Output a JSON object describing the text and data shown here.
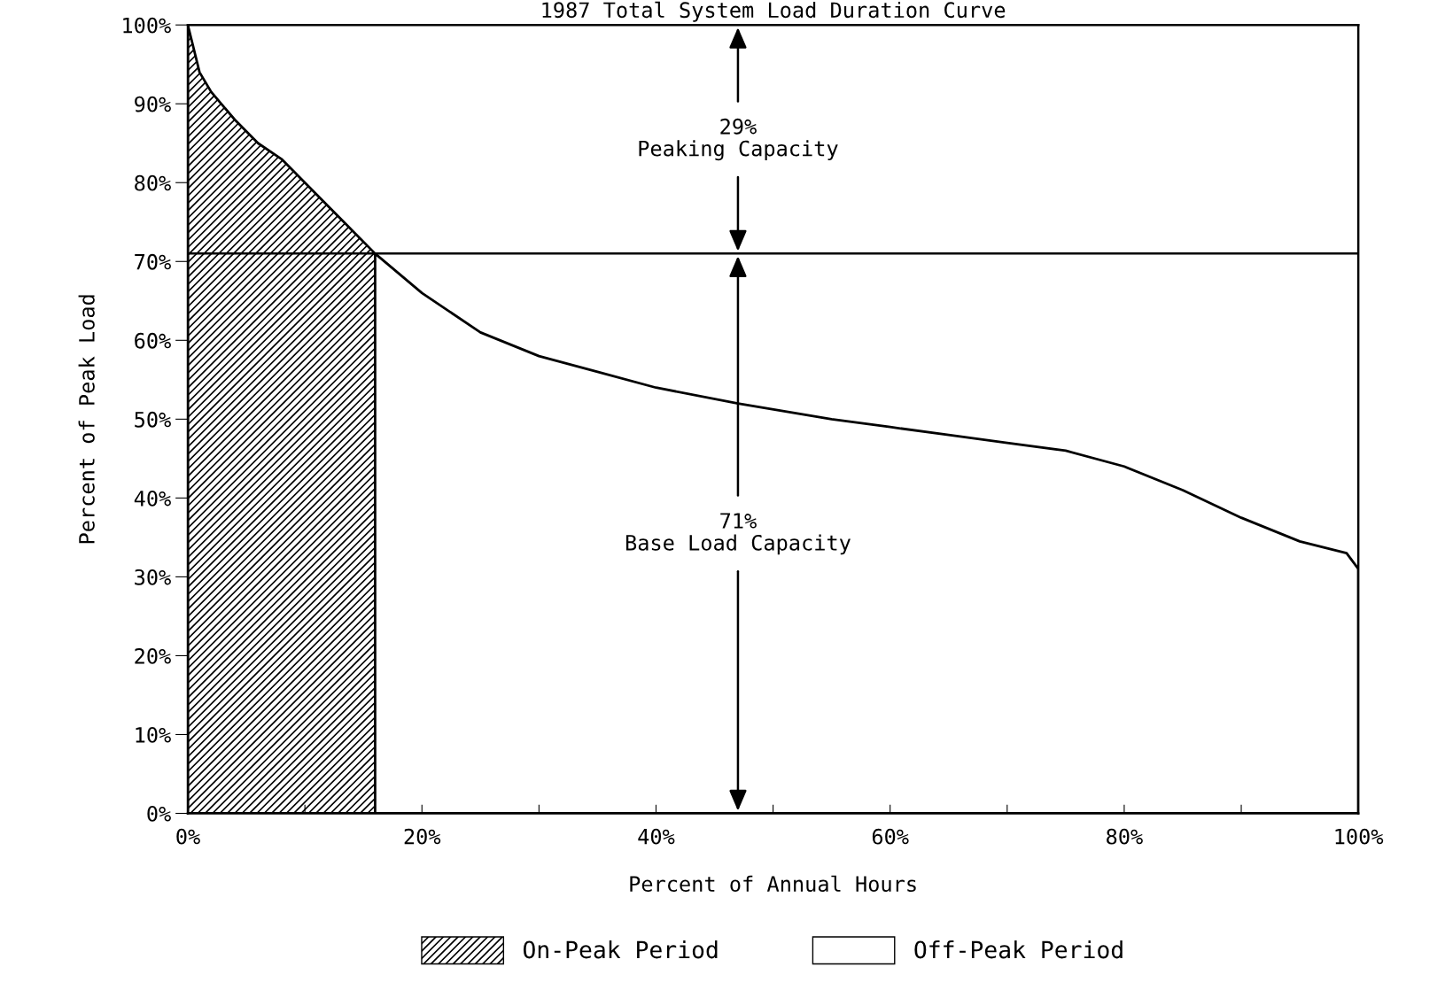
{
  "chart_data": {
    "type": "area",
    "title": "1987 Total System Load Duration Curve",
    "xlabel": "Percent of Annual Hours",
    "ylabel": "Percent of Peak Load",
    "xlim": [
      0,
      100
    ],
    "ylim": [
      0,
      100
    ],
    "xticks": [
      {
        "value": 0,
        "label": "0%"
      },
      {
        "value": 10,
        "label": null
      },
      {
        "value": 20,
        "label": "20%"
      },
      {
        "value": 30,
        "label": null
      },
      {
        "value": 40,
        "label": "40%"
      },
      {
        "value": 50,
        "label": null
      },
      {
        "value": 60,
        "label": "60%"
      },
      {
        "value": 70,
        "label": null
      },
      {
        "value": 80,
        "label": "80%"
      },
      {
        "value": 90,
        "label": null
      },
      {
        "value": 100,
        "label": "100%"
      }
    ],
    "yticks": [
      {
        "value": 0,
        "label": "0%"
      },
      {
        "value": 10,
        "label": "10%"
      },
      {
        "value": 20,
        "label": "20%"
      },
      {
        "value": 30,
        "label": "30%"
      },
      {
        "value": 40,
        "label": "40%"
      },
      {
        "value": 50,
        "label": "50%"
      },
      {
        "value": 60,
        "label": "60%"
      },
      {
        "value": 70,
        "label": "70%"
      },
      {
        "value": 80,
        "label": "80%"
      },
      {
        "value": 90,
        "label": "90%"
      },
      {
        "value": 100,
        "label": "100%"
      }
    ],
    "series": [
      {
        "name": "On-Peak Period",
        "color": "#000000",
        "x": [
          0,
          1,
          2,
          4,
          6,
          8,
          10,
          12,
          14,
          16
        ],
        "values": [
          100,
          94,
          91.5,
          88,
          85,
          83,
          80,
          77,
          74,
          71
        ]
      },
      {
        "name": "Off-Peak Period",
        "color": "#ffffff",
        "x": [
          16,
          20,
          25,
          30,
          35,
          40,
          47,
          55,
          60,
          65,
          70,
          75,
          80,
          85,
          90,
          95,
          99,
          100
        ],
        "values": [
          71,
          66,
          61,
          58,
          56,
          54,
          52,
          50,
          49,
          48,
          47,
          46,
          44,
          41,
          37.5,
          34.5,
          33,
          31
        ]
      }
    ],
    "ref_lines": [
      {
        "axis": "y",
        "value": 71,
        "label": null,
        "color": "#000000"
      }
    ],
    "annotations": [
      "29%\nPeaking Capacity",
      "71%\nBase Load Capacity"
    ],
    "grid": false,
    "legend": "bottom"
  }
}
